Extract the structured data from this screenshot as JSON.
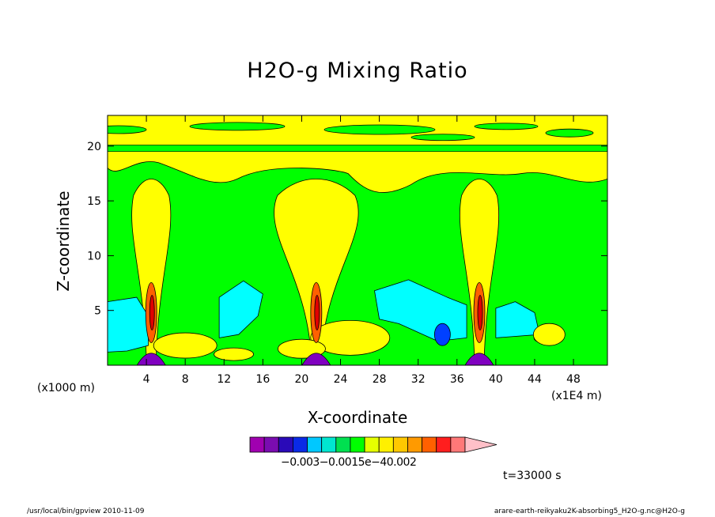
{
  "chart_data": {
    "type": "heatmap",
    "title": "H2O-g Mixing Ratio",
    "xlabel": "X-coordinate",
    "ylabel": "Z-coordinate",
    "x_unit_note": "(x1000 m)",
    "x_scale_note": "(x1E4 m)",
    "xlim": [
      0,
      51.5
    ],
    "ylim": [
      0,
      22.8
    ],
    "x_ticks": [
      4,
      8,
      12,
      16,
      20,
      24,
      28,
      32,
      36,
      40,
      44,
      48
    ],
    "y_ticks": [
      5,
      10,
      15,
      20
    ],
    "colorbar_colors": [
      "#a000b0",
      "#7a0cb0",
      "#2a0ab8",
      "#0a2ae6",
      "#00c8ff",
      "#00e6d0",
      "#00e050",
      "#00ff00",
      "#e6ff00",
      "#fff000",
      "#ffc800",
      "#ff9a00",
      "#ff6000",
      "#ff1e1e",
      "#ff7878",
      "#ffc0c8"
    ],
    "colorbar_labels_text": "−0.003−0.0015e−40.002",
    "fields": {
      "background": "#00ff00",
      "moist": "#ffff00",
      "dry": "#00ffff",
      "very_dry": "#0040ff",
      "anomaly_high": "#ff6000",
      "anomaly_peak": "#e00000",
      "anomaly_low": "#8000c0"
    },
    "convective_columns_x": [
      4.5,
      21.5,
      38.3
    ],
    "tropopause_band_z": 19.8
  },
  "labels": {
    "time": "t=33000 s",
    "footer_left": "/usr/local/bin/gpview  2010-11-09",
    "footer_right": "arare-earth-reikyaku2K-absorbing5_H2O-g.nc@H2O-g"
  }
}
